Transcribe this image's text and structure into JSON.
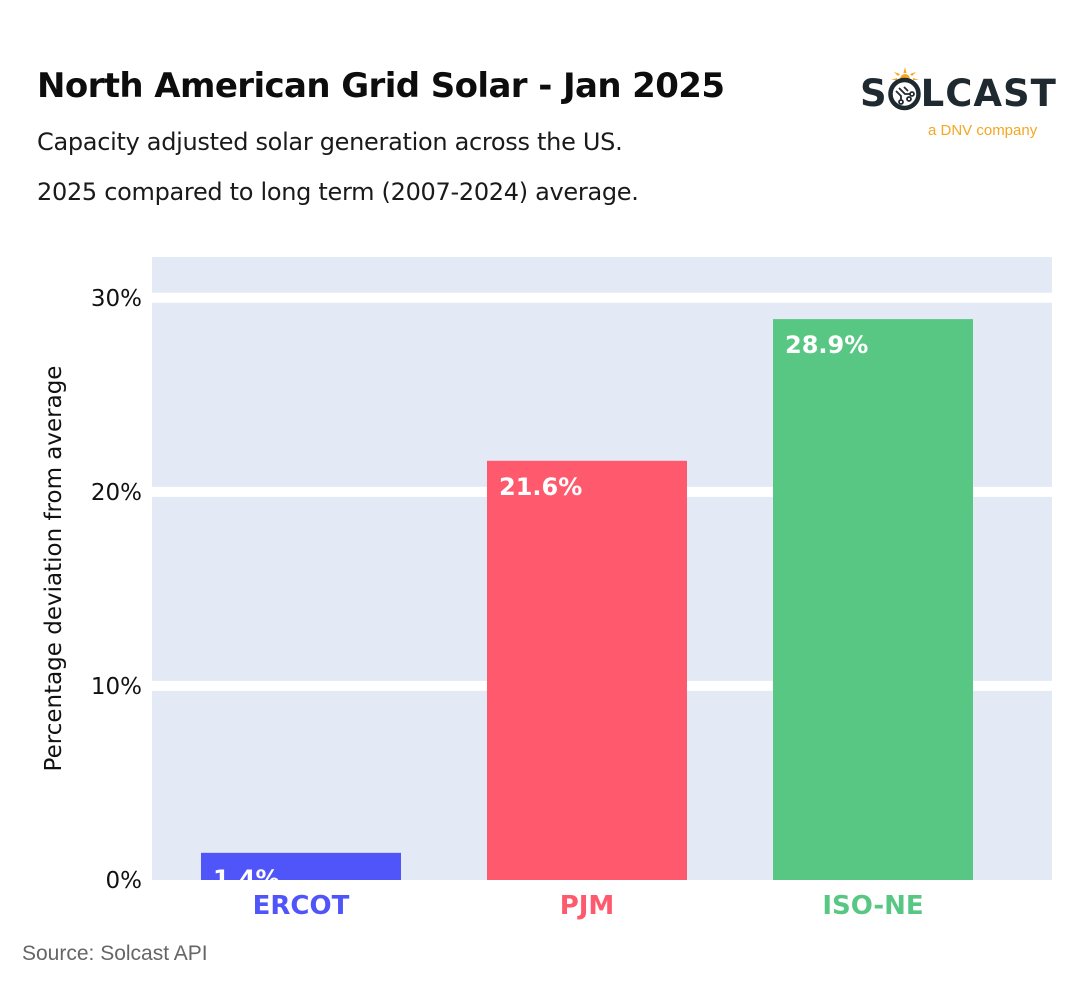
{
  "header": {
    "title": "North American Grid Solar - Jan 2025",
    "subtitle_line1": "Capacity adjusted solar generation across the US.",
    "subtitle_line2": "2025 compared to long term (2007-2024) average."
  },
  "logo": {
    "brand_prefix": "S",
    "brand_suffix": "LCAST",
    "tagline": "a DNV company",
    "icon": "sun-circuit-icon",
    "brand_color": "#1f2a30",
    "accent_color": "#f5a623"
  },
  "footer": {
    "source": "Source: Solcast API"
  },
  "chart_data": {
    "type": "bar",
    "title": "North American Grid Solar - Jan 2025",
    "xlabel": "",
    "ylabel": "Percentage deviation from average",
    "categories": [
      "ERCOT",
      "PJM",
      "ISO-NE"
    ],
    "values": [
      1.4,
      21.6,
      28.9
    ],
    "value_labels": [
      "1.4%",
      "21.6%",
      "28.9%"
    ],
    "colors": [
      "#5055fa",
      "#fe596c",
      "#59c784"
    ],
    "ylim": [
      0,
      32.1
    ],
    "yticks": [
      0,
      10,
      20,
      30
    ],
    "ytick_labels": [
      "0%",
      "10%",
      "20%",
      "30%"
    ],
    "grid": true,
    "plot_background": "#e4eaf5",
    "legend": "none"
  }
}
